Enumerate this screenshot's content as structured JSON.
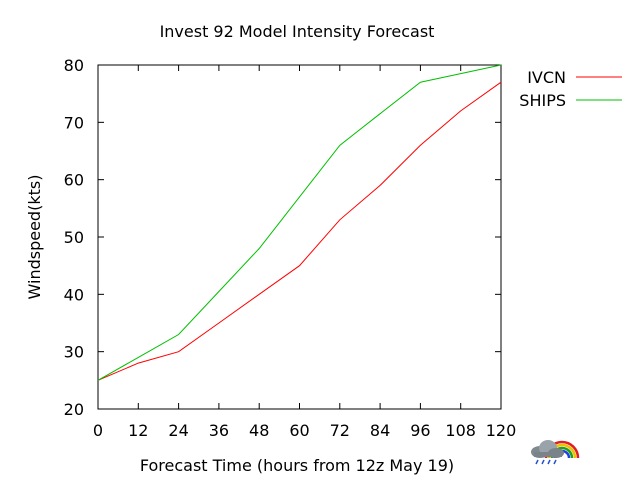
{
  "chart_data": {
    "type": "line",
    "title": "Invest 92 Model Intensity Forecast",
    "xlabel": "Forecast Time (hours from 12z May 19)",
    "ylabel": "Windspeed(kts)",
    "x": [
      0,
      12,
      24,
      36,
      48,
      60,
      72,
      84,
      96,
      108,
      120
    ],
    "xlim": [
      0,
      120
    ],
    "ylim": [
      20,
      80
    ],
    "xticks": [
      "0",
      "12",
      "24",
      "36",
      "48",
      "60",
      "72",
      "84",
      "96",
      "108",
      "120"
    ],
    "yticks": [
      "20",
      "30",
      "40",
      "50",
      "60",
      "70",
      "80"
    ],
    "grid": false,
    "legend": "top-right, outside plot",
    "series": [
      {
        "name": "IVCN",
        "color": "#ff0000",
        "values": [
          25,
          28,
          30,
          35,
          40,
          45,
          53,
          59,
          66,
          72,
          77
        ]
      },
      {
        "name": "SHIPS",
        "color": "#00c000",
        "values": [
          25,
          29,
          33,
          40.5,
          48,
          57,
          66,
          71.5,
          77,
          78.5,
          80
        ]
      }
    ]
  },
  "logo": {
    "icon": "weather-cloud-rainbow-icon"
  }
}
